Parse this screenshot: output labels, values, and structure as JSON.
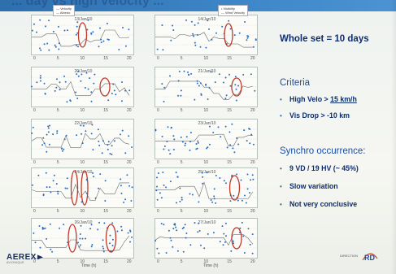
{
  "slide": {
    "title_fragment": "... day vs high velocity ..."
  },
  "plots": {
    "legend_left": [
      "Velocity",
      "Albedo"
    ],
    "legend_right": [
      "Visibility",
      "Wind Velocity"
    ],
    "panels": [
      {
        "label": "13/Jan/10"
      },
      {
        "label": "14/Jan/10"
      },
      {
        "label": "20/Jan/10"
      },
      {
        "label": "21/Jan/10"
      },
      {
        "label": "22/Jan/10"
      },
      {
        "label": "23/Jan/10"
      },
      {
        "label": "24/Jan/10"
      },
      {
        "label": "25/Jan/10"
      },
      {
        "label": "26/Jan/10"
      },
      {
        "label": "27/Jan/10"
      }
    ],
    "x_ticks": [
      "0",
      "5",
      "10",
      "15",
      "20"
    ],
    "x_axis_label": "Time (h)"
  },
  "right_panel": {
    "whole_set": "Whole set = 10 days",
    "criteria_heading": "Criteria",
    "criteria": [
      {
        "prefix": "High Velo > ",
        "value": "15 km/h"
      },
      {
        "prefix": "Vis Drop > -10 km",
        "value": ""
      }
    ],
    "synchro_heading": "Synchro occurrence:",
    "synchro_items": [
      "9 VD / 19 HV (~ 45%)",
      "Slow variation",
      "Not very conclusive"
    ]
  },
  "footer": {
    "logo_text": "AEREX",
    "logo_sub": "AVIONIQUE",
    "right_text": "DIRECTION",
    "rd_text": "RD"
  },
  "colors": {
    "accent": "#1a4fa3",
    "text_dark": "#0d2e6e",
    "highlight_circle": "#c0392b",
    "series_dots": "#2a6fc2",
    "series_line": "#6b6b6b"
  }
}
